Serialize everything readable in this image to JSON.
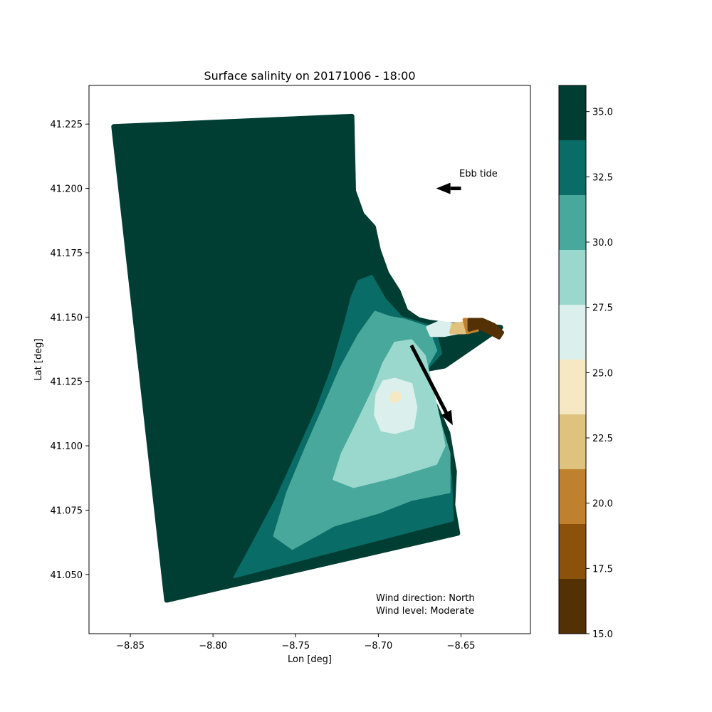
{
  "chart_data": {
    "type": "heatmap",
    "title": "Surface salinity on 20171006 - 18:00",
    "xlabel": "Lon [deg]",
    "ylabel": "Lat [deg]",
    "xlim": [
      -8.875,
      -8.608
    ],
    "ylim": [
      41.027,
      41.24
    ],
    "xticks": [
      -8.85,
      -8.8,
      -8.75,
      -8.7,
      -8.65
    ],
    "xtick_labels": [
      "−8.85",
      "−8.80",
      "−8.75",
      "−8.70",
      "−8.65"
    ],
    "yticks": [
      41.05,
      41.075,
      41.1,
      41.125,
      41.15,
      41.175,
      41.2,
      41.225
    ],
    "ytick_labels": [
      "41.050",
      "41.075",
      "41.100",
      "41.125",
      "41.150",
      "41.175",
      "41.200",
      "41.225"
    ],
    "grid": false,
    "colorbar": {
      "vmin": 15.0,
      "vmax": 36.0,
      "levels": [
        15.0,
        17.1,
        19.2,
        21.3,
        23.4,
        25.5,
        27.6,
        29.7,
        31.8,
        33.9,
        36.0
      ],
      "colors": [
        "#543005",
        "#8c510a",
        "#bf812d",
        "#dfc27d",
        "#f6e8c3",
        "#dbf0ed",
        "#9ad8cd",
        "#48a89c",
        "#0a6c66",
        "#003d33"
      ],
      "ticks": [
        15.0,
        17.5,
        20.0,
        22.5,
        25.0,
        27.5,
        30.0,
        32.5,
        35.0
      ],
      "tick_labels": [
        "15.0",
        "17.5",
        "20.0",
        "22.5",
        "25.0",
        "27.5",
        "30.0",
        "32.5",
        "35.0"
      ]
    },
    "domain_outline": [
      [
        -8.86,
        41.224
      ],
      [
        -8.716,
        41.228
      ],
      [
        -8.715,
        41.199
      ],
      [
        -8.71,
        41.19
      ],
      [
        -8.703,
        41.185
      ],
      [
        -8.7,
        41.176
      ],
      [
        -8.695,
        41.167
      ],
      [
        -8.688,
        41.16
      ],
      [
        -8.682,
        41.15
      ],
      [
        -8.669,
        41.148
      ],
      [
        -8.657,
        41.147
      ],
      [
        -8.642,
        41.147
      ],
      [
        -8.626,
        41.146
      ],
      [
        -8.66,
        41.131
      ],
      [
        -8.677,
        41.129
      ],
      [
        -8.665,
        41.115
      ],
      [
        -8.658,
        41.105
      ],
      [
        -8.654,
        41.09
      ],
      [
        -8.655,
        41.077
      ],
      [
        -8.652,
        41.066
      ],
      [
        -8.828,
        41.04
      ]
    ],
    "salinity_zones": [
      {
        "level": 33.9,
        "outline": [
          [
            -8.73,
            41.174
          ],
          [
            -8.708,
            41.177
          ],
          [
            -8.703,
            41.17
          ],
          [
            -8.69,
            41.156
          ],
          [
            -8.672,
            41.148
          ],
          [
            -8.66,
            41.146
          ],
          [
            -8.662,
            41.134
          ],
          [
            -8.678,
            41.128
          ],
          [
            -8.664,
            41.11
          ],
          [
            -8.656,
            41.09
          ],
          [
            -8.655,
            41.068
          ],
          [
            -8.807,
            41.044
          ],
          [
            -8.79,
            41.058
          ],
          [
            -8.773,
            41.075
          ],
          [
            -8.76,
            41.093
          ],
          [
            -8.745,
            41.112
          ],
          [
            -8.735,
            41.13
          ],
          [
            -8.727,
            41.15
          ],
          [
            -8.73,
            41.168
          ]
        ]
      },
      {
        "level": 31.8,
        "outline": [
          [
            -8.712,
            41.164
          ],
          [
            -8.704,
            41.166
          ],
          [
            -8.696,
            41.157
          ],
          [
            -8.686,
            41.15
          ],
          [
            -8.666,
            41.146
          ],
          [
            -8.662,
            41.136
          ],
          [
            -8.676,
            41.126
          ],
          [
            -8.663,
            41.108
          ],
          [
            -8.656,
            41.088
          ],
          [
            -8.655,
            41.071
          ],
          [
            -8.787,
            41.049
          ],
          [
            -8.776,
            41.062
          ],
          [
            -8.762,
            41.079
          ],
          [
            -8.75,
            41.096
          ],
          [
            -8.738,
            41.113
          ],
          [
            -8.728,
            41.13
          ],
          [
            -8.72,
            41.148
          ],
          [
            -8.716,
            41.158
          ]
        ]
      },
      {
        "level": 29.7,
        "outline": [
          [
            -8.702,
            41.152
          ],
          [
            -8.693,
            41.15
          ],
          [
            -8.684,
            41.149
          ],
          [
            -8.67,
            41.146
          ],
          [
            -8.665,
            41.137
          ],
          [
            -8.675,
            41.126
          ],
          [
            -8.664,
            41.112
          ],
          [
            -8.657,
            41.097
          ],
          [
            -8.657,
            41.082
          ],
          [
            -8.68,
            41.079
          ],
          [
            -8.7,
            41.074
          ],
          [
            -8.727,
            41.069
          ],
          [
            -8.752,
            41.06
          ],
          [
            -8.763,
            41.065
          ],
          [
            -8.755,
            41.082
          ],
          [
            -8.744,
            41.099
          ],
          [
            -8.733,
            41.115
          ],
          [
            -8.723,
            41.13
          ],
          [
            -8.712,
            41.143
          ]
        ]
      },
      {
        "level": 27.6,
        "outline": [
          [
            -8.69,
            41.14
          ],
          [
            -8.68,
            41.141
          ],
          [
            -8.672,
            41.135
          ],
          [
            -8.668,
            41.124
          ],
          [
            -8.663,
            41.11
          ],
          [
            -8.66,
            41.1
          ],
          [
            -8.665,
            41.093
          ],
          [
            -8.69,
            41.088
          ],
          [
            -8.715,
            41.084
          ],
          [
            -8.727,
            41.087
          ],
          [
            -8.722,
            41.097
          ],
          [
            -8.712,
            41.11
          ],
          [
            -8.703,
            41.122
          ],
          [
            -8.697,
            41.132
          ]
        ]
      },
      {
        "level": 25.5,
        "outline": [
          [
            -8.69,
            41.126
          ],
          [
            -8.68,
            41.124
          ],
          [
            -8.677,
            41.115
          ],
          [
            -8.679,
            41.107
          ],
          [
            -8.69,
            41.105
          ],
          [
            -8.698,
            41.106
          ],
          [
            -8.702,
            41.112
          ],
          [
            -8.701,
            41.12
          ],
          [
            -8.697,
            41.125
          ]
        ]
      },
      {
        "level": 23.4,
        "outline": [
          [
            -8.69,
            41.121
          ],
          [
            -8.687,
            41.12
          ],
          [
            -8.687,
            41.118
          ],
          [
            -8.69,
            41.117
          ],
          [
            -8.693,
            41.118
          ],
          [
            -8.692,
            41.12
          ]
        ]
      }
    ],
    "river_zones": [
      {
        "level": 25.5,
        "outline": [
          [
            -8.67,
            41.146
          ],
          [
            -8.663,
            41.148
          ],
          [
            -8.655,
            41.147
          ],
          [
            -8.652,
            41.144
          ],
          [
            -8.66,
            41.143
          ],
          [
            -8.668,
            41.143
          ]
        ]
      },
      {
        "level": 21.3,
        "outline": [
          [
            -8.655,
            41.147
          ],
          [
            -8.645,
            41.148
          ],
          [
            -8.641,
            41.145
          ],
          [
            -8.648,
            41.144
          ],
          [
            -8.656,
            41.144
          ]
        ]
      },
      {
        "level": 19.2,
        "outline": [
          [
            -8.648,
            41.149
          ],
          [
            -8.642,
            41.149
          ],
          [
            -8.64,
            41.145
          ],
          [
            -8.646,
            41.144
          ]
        ]
      },
      {
        "level": 15.0,
        "outline": [
          [
            -8.645,
            41.149
          ],
          [
            -8.637,
            41.149
          ],
          [
            -8.63,
            41.147
          ],
          [
            -8.625,
            41.144
          ],
          [
            -8.627,
            41.142
          ],
          [
            -8.633,
            41.144
          ],
          [
            -8.64,
            41.146
          ],
          [
            -8.645,
            41.145
          ]
        ]
      }
    ],
    "arrows": [
      {
        "name": "ebb-tide-arrow",
        "from": [
          -8.65,
          41.2
        ],
        "to": [
          -8.665,
          41.2
        ]
      },
      {
        "name": "wind-arrow",
        "from": [
          -8.68,
          41.139
        ],
        "to": [
          -8.655,
          41.108
        ]
      }
    ],
    "annotations": {
      "ebb_tide": "Ebb tide",
      "wind_direction": "Wind direction: North",
      "wind_level": "Wind level: Moderate"
    }
  }
}
